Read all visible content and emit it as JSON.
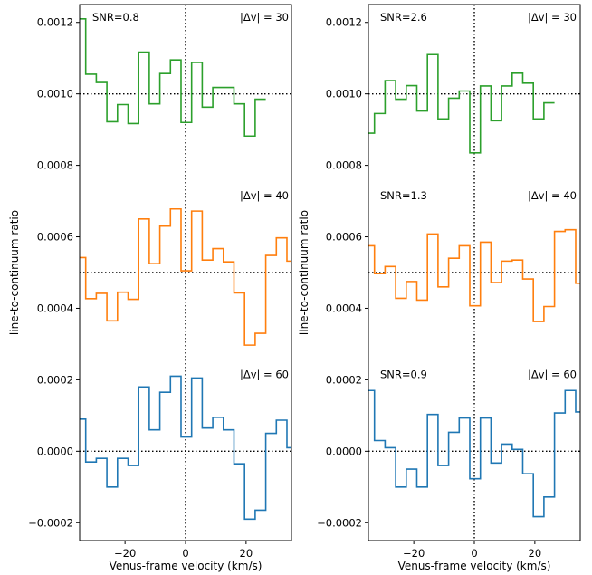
{
  "chart_data": [
    {
      "type": "line",
      "xlabel": "Venus-frame velocity (km/s)",
      "ylabel": "line-to-continuum ratio",
      "xlim": [
        -35,
        35
      ],
      "ylim": [
        -0.00025,
        0.00125
      ],
      "xticks": [
        -20,
        0,
        20
      ],
      "xtick_labels": [
        "−20",
        "0",
        "20"
      ],
      "yticks": [
        -0.0002,
        0,
        0.0002,
        0.0004,
        0.0006,
        0.0008,
        0.001,
        0.0012
      ],
      "ytick_labels": [
        "−0.0002",
        "0.0000",
        "0.0002",
        "0.0004",
        "0.0006",
        "0.0008",
        "0.0010",
        "0.0012"
      ],
      "hlines": [
        0.001,
        0.0005,
        0.0
      ],
      "vline": 0,
      "step_x": [
        -35,
        -33,
        -29.5,
        -26,
        -22.5,
        -19,
        -15.5,
        -12,
        -8.5,
        -5,
        -1.5,
        2,
        5.5,
        9,
        12.5,
        16,
        19.5,
        23,
        26.5,
        30,
        33.5,
        35
      ],
      "series": [
        {
          "color": "#2ca02c",
          "snr": "SNR=0.8",
          "dv": "|Δv| = 30",
          "values": [
            0.00121,
            0.001055,
            0.001032,
            0.000922,
            0.00097,
            0.000917,
            0.001117,
            0.000972,
            0.001057,
            0.001095,
            0.00092,
            0.001088,
            0.000963,
            0.001018,
            0.001018,
            0.000972,
            0.000882,
            0.000985,
            null,
            null,
            null
          ]
        },
        {
          "color": "#ff7f0e",
          "snr": "",
          "dv": "|Δv| = 40",
          "values": [
            0.000542,
            0.000427,
            0.000442,
            0.000365,
            0.000445,
            0.000425,
            0.00065,
            0.000525,
            0.00063,
            0.000678,
            0.000505,
            0.000672,
            0.000535,
            0.000567,
            0.00053,
            0.000443,
            0.000297,
            0.00033,
            0.000548,
            0.000597,
            0.000532
          ]
        },
        {
          "color": "#1f77b4",
          "snr": "",
          "dv": "|Δv| = 60",
          "values": [
            9e-05,
            -3e-05,
            -2e-05,
            -0.0001,
            -2e-05,
            -4e-05,
            0.00018,
            6e-05,
            0.000165,
            0.00021,
            4e-05,
            0.000205,
            6.5e-05,
            9.5e-05,
            6e-05,
            -3.5e-05,
            -0.00019,
            -0.000165,
            5e-05,
            8.7e-05,
            1e-05
          ]
        }
      ]
    },
    {
      "type": "line",
      "xlabel": "Venus-frame velocity (km/s)",
      "ylabel": "line-to-continuum ratio",
      "xlim": [
        -35,
        35
      ],
      "ylim": [
        -0.00025,
        0.00125
      ],
      "xticks": [
        -20,
        0,
        20
      ],
      "xtick_labels": [
        "−20",
        "0",
        "20"
      ],
      "yticks": [
        -0.0002,
        0,
        0.0002,
        0.0004,
        0.0006,
        0.0008,
        0.001,
        0.0012
      ],
      "ytick_labels": [
        "−0.0002",
        "0.0000",
        "0.0002",
        "0.0004",
        "0.0006",
        "0.0008",
        "0.0010",
        "0.0012"
      ],
      "hlines": [
        0.001,
        0.0005,
        0.0
      ],
      "vline": 0,
      "step_x": [
        -35,
        -33,
        -29.5,
        -26,
        -22.5,
        -19,
        -15.5,
        -12,
        -8.5,
        -5,
        -1.5,
        2,
        5.5,
        9,
        12.5,
        16,
        19.5,
        23,
        26.5,
        30,
        33.5,
        35
      ],
      "series": [
        {
          "color": "#2ca02c",
          "snr": "SNR=2.6",
          "dv": "|Δv| = 30",
          "values": [
            0.00089,
            0.000945,
            0.001037,
            0.000985,
            0.001023,
            0.000952,
            0.00111,
            0.00093,
            0.000988,
            0.001008,
            0.000835,
            0.001022,
            0.000925,
            0.001022,
            0.001058,
            0.00103,
            0.00093,
            0.000975,
            null,
            null,
            null
          ]
        },
        {
          "color": "#ff7f0e",
          "snr": "SNR=1.3",
          "dv": "|Δv| = 40",
          "values": [
            0.000575,
            0.000497,
            0.000517,
            0.000428,
            0.000475,
            0.000423,
            0.000608,
            0.00046,
            0.00054,
            0.000575,
            0.000407,
            0.000585,
            0.000472,
            0.000532,
            0.000535,
            0.000482,
            0.000363,
            0.000405,
            0.000615,
            0.00062,
            0.00047
          ]
        },
        {
          "color": "#1f77b4",
          "snr": "SNR=0.9",
          "dv": "|Δv| = 60",
          "values": [
            0.00017,
            3e-05,
            1e-05,
            -0.0001,
            -5e-05,
            -0.0001,
            0.000103,
            -4e-05,
            5.3e-05,
            9.3e-05,
            -7.7e-05,
            9.3e-05,
            -3.3e-05,
            2e-05,
            5e-06,
            -6.3e-05,
            -0.000183,
            -0.000128,
            0.000107,
            0.00017,
            0.00011
          ]
        }
      ]
    }
  ]
}
